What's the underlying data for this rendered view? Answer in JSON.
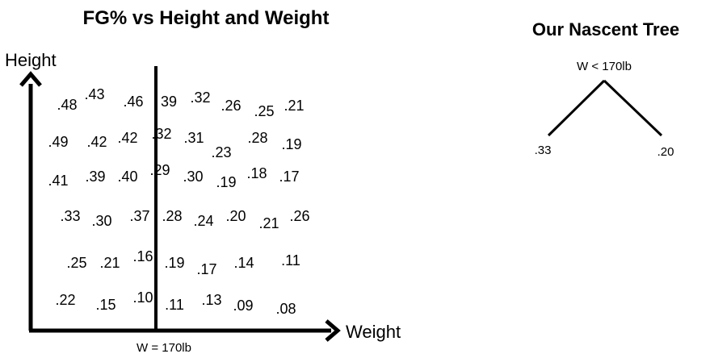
{
  "scatter": {
    "title": "FG% vs Height and Weight",
    "y_axis_label": "Height",
    "x_axis_label": "Weight",
    "split_label": "W = 170lb",
    "rows": [
      [
        ".48",
        ".43",
        ".46",
        "39",
        ".32",
        ".26",
        ".25",
        ".21"
      ],
      [
        ".49",
        ".42",
        ".42",
        ".32",
        ".31",
        ".23",
        ".28",
        ".19"
      ],
      [
        ".41",
        ".39",
        ".40",
        ".29",
        ".30",
        ".19",
        ".18",
        ".17"
      ],
      [
        ".33",
        ".30",
        ".37",
        ".28",
        ".24",
        ".20",
        ".21",
        ".26"
      ],
      [
        ".25",
        ".21",
        ".16",
        ".19",
        ".17",
        ".14",
        ".11"
      ],
      [
        ".22",
        ".15",
        ".10",
        ".11",
        ".13",
        ".09",
        ".08"
      ]
    ]
  },
  "tree": {
    "title": "Our Nascent Tree",
    "root_label": "W < 170lb",
    "left_leaf": ".33",
    "right_leaf": ".20"
  }
}
